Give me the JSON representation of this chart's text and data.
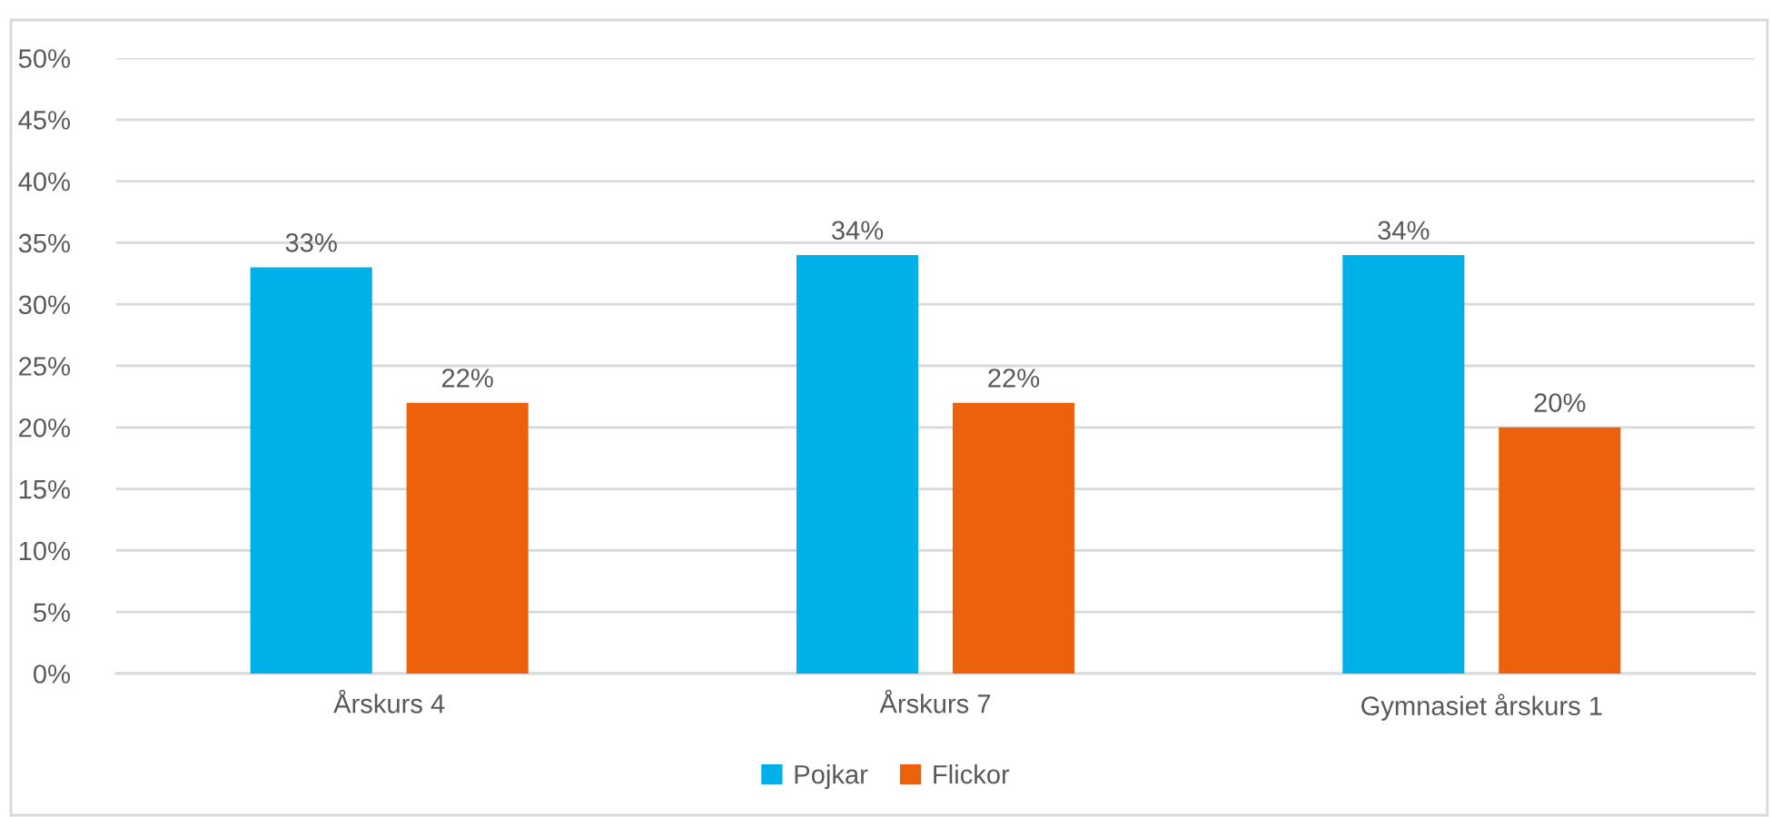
{
  "chart_data": {
    "type": "bar",
    "categories": [
      "Årskurs 4",
      "Årskurs 7",
      "Gymnasiet årskurs 1"
    ],
    "series": [
      {
        "name": "Pojkar",
        "color": "#00b0e8",
        "values": [
          33,
          34,
          34
        ],
        "value_labels": [
          "33%",
          "34%",
          "34%"
        ]
      },
      {
        "name": "Flickor",
        "color": "#ec620c",
        "values": [
          22,
          22,
          20
        ],
        "value_labels": [
          "22%",
          "22%",
          "20%"
        ]
      }
    ],
    "ylim": [
      0,
      50
    ],
    "yticks": [
      {
        "value": 0,
        "label": "0%"
      },
      {
        "value": 5,
        "label": "5%"
      },
      {
        "value": 10,
        "label": "10%"
      },
      {
        "value": 15,
        "label": "15%"
      },
      {
        "value": 20,
        "label": "20%"
      },
      {
        "value": 25,
        "label": "25%"
      },
      {
        "value": 30,
        "label": "30%"
      },
      {
        "value": 35,
        "label": "35%"
      },
      {
        "value": 40,
        "label": "40%"
      },
      {
        "value": 45,
        "label": "45%"
      },
      {
        "value": 50,
        "label": "50%"
      }
    ],
    "grid": "y",
    "legend": "bottom"
  }
}
